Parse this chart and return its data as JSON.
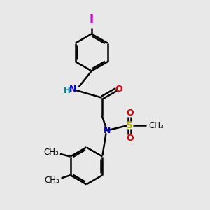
{
  "bg_color": "#e8e8e8",
  "bond_color": "#000000",
  "bond_width": 1.8,
  "N_color": "#0000dd",
  "O_color": "#dd0000",
  "S_color": "#aaaa00",
  "I_color": "#cc00cc",
  "H_color": "#008080",
  "C_color": "#000000",
  "font_size": 8.5,
  "figsize": [
    3.0,
    3.0
  ],
  "dpi": 100,
  "xlim": [
    0,
    10
  ],
  "ylim": [
    0,
    10
  ]
}
